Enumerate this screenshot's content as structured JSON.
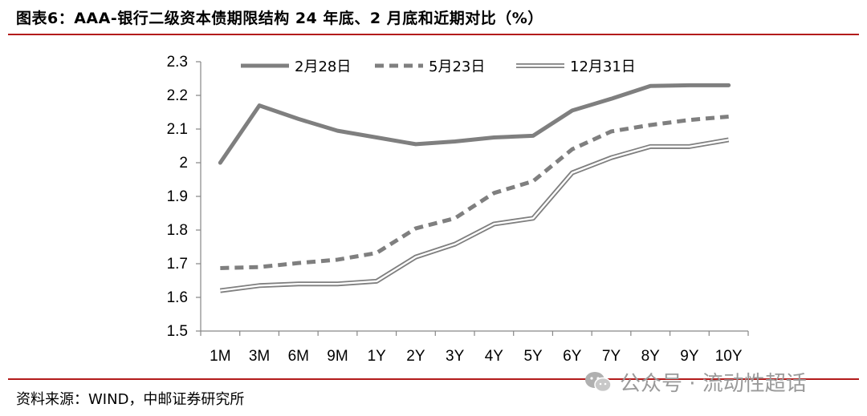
{
  "header": {
    "title": "图表6：AAA-银行二级资本债期限结构 24 年底、2 月底和近期对比（%）"
  },
  "footer": {
    "source": "资料来源：WIND，中邮证券研究所"
  },
  "watermark": {
    "text": "公众号 · 流动性超话",
    "icon": "wechat-icon"
  },
  "colors": {
    "accent_rule": "#b31b1b",
    "series": "#7f7f7f"
  },
  "chart_data": {
    "type": "line",
    "title": "",
    "xlabel": "",
    "ylabel": "",
    "ylim": [
      1.5,
      2.3
    ],
    "yticks": [
      "1.5",
      "1.6",
      "1.7",
      "1.8",
      "1.9",
      "2",
      "2.1",
      "2.2",
      "2.3"
    ],
    "categories": [
      "1M",
      "3M",
      "6M",
      "9M",
      "1Y",
      "2Y",
      "3Y",
      "4Y",
      "5Y",
      "6Y",
      "7Y",
      "8Y",
      "9Y",
      "10Y"
    ],
    "legend_position": "top",
    "grid": false,
    "series": [
      {
        "name": "2月28日",
        "style": "solid-thick",
        "values": [
          2.0,
          2.17,
          2.13,
          2.095,
          2.075,
          2.055,
          2.063,
          2.075,
          2.08,
          2.155,
          2.19,
          2.228,
          2.23,
          2.23
        ]
      },
      {
        "name": "5月23日",
        "style": "dashed",
        "values": [
          1.687,
          1.69,
          1.702,
          1.712,
          1.732,
          1.805,
          1.835,
          1.91,
          1.945,
          2.04,
          2.093,
          2.112,
          2.127,
          2.137
        ]
      },
      {
        "name": "12月31日",
        "style": "double",
        "values": [
          1.62,
          1.635,
          1.64,
          1.64,
          1.648,
          1.72,
          1.758,
          1.818,
          1.835,
          1.97,
          2.015,
          2.048,
          2.048,
          2.068
        ]
      }
    ]
  }
}
